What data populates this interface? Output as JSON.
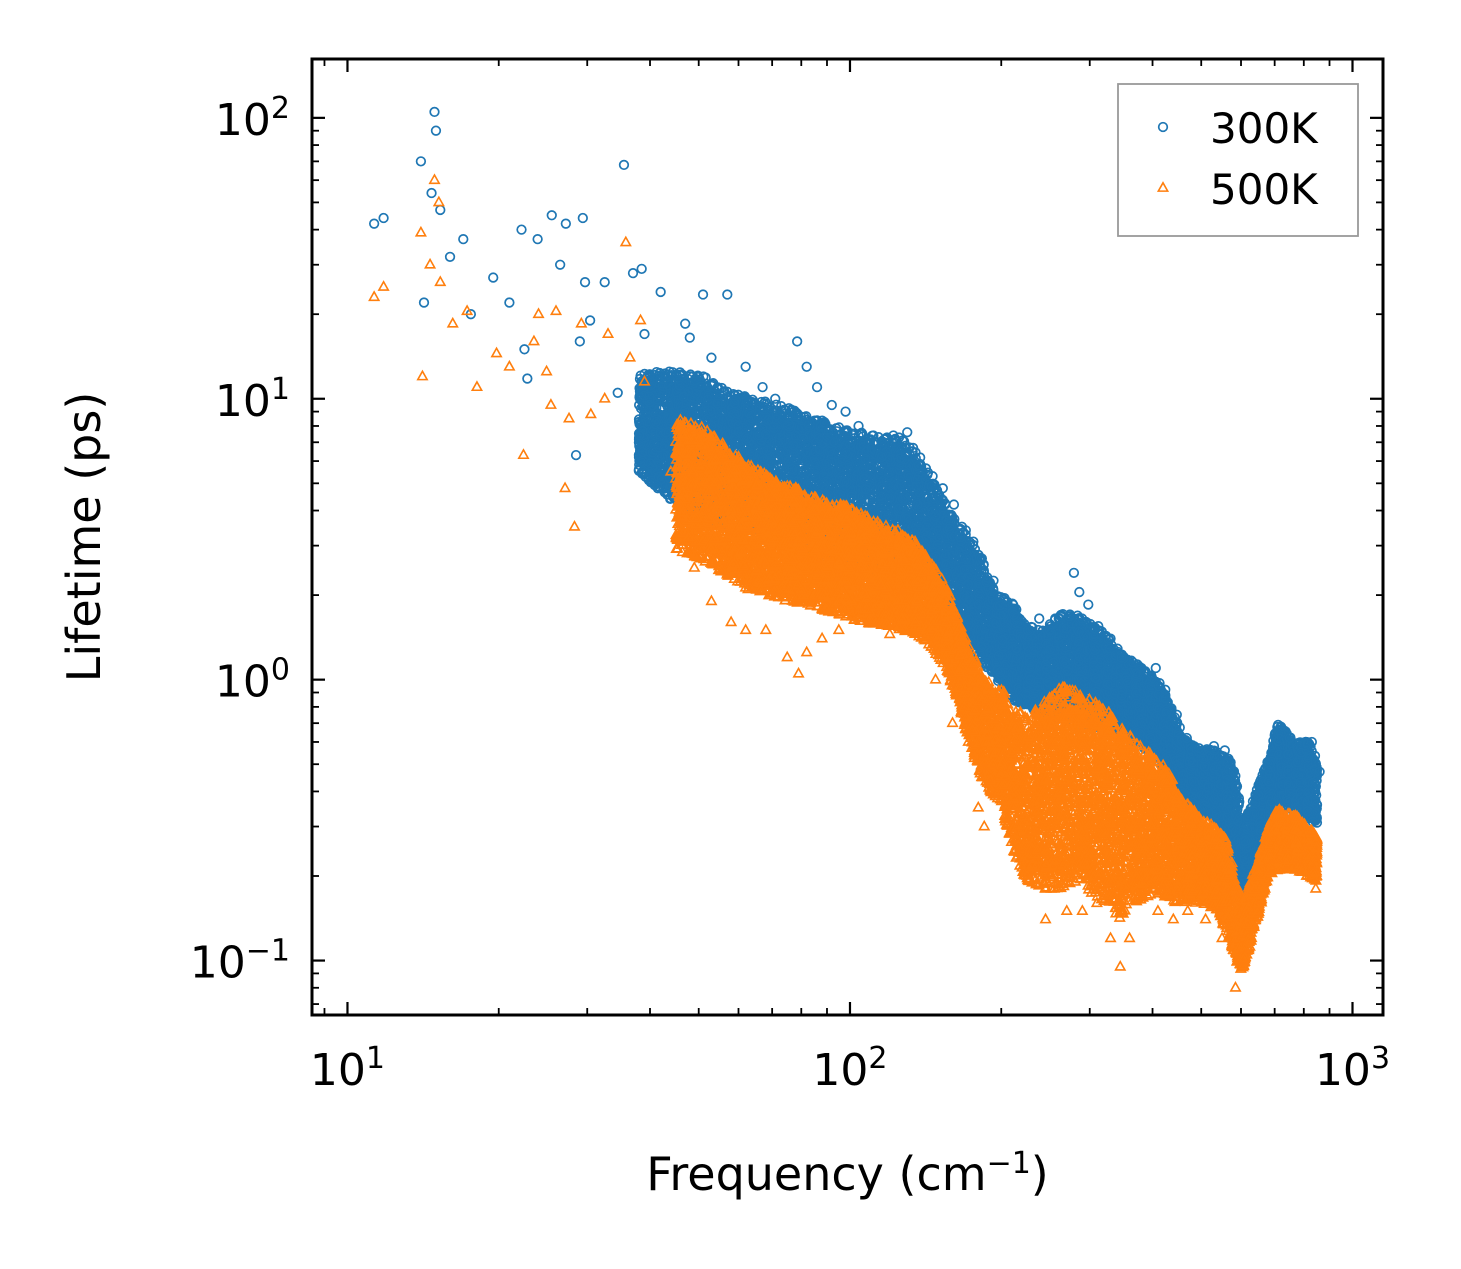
{
  "chart_data": {
    "type": "scatter",
    "title": "",
    "xlabel": "Frequency (cm",
    "xlabel_exponent": "−1",
    "xlabel_close": ")",
    "ylabel": "Lifetime (ps)",
    "xscale": "log",
    "yscale": "log",
    "xlim": [
      8.5,
      1150
    ],
    "ylim": [
      0.064,
      162
    ],
    "x_ticks": [
      {
        "value": 10,
        "base": "10",
        "exp": "1"
      },
      {
        "value": 100,
        "base": "10",
        "exp": "2"
      },
      {
        "value": 1000,
        "base": "10",
        "exp": "3"
      }
    ],
    "y_ticks": [
      {
        "value": 0.1,
        "base": "10",
        "exp": "−1"
      },
      {
        "value": 1,
        "base": "10",
        "exp": "0"
      },
      {
        "value": 10,
        "base": "10",
        "exp": "1"
      },
      {
        "value": 100,
        "base": "10",
        "exp": "2"
      }
    ],
    "legend_position": "top-right",
    "series": [
      {
        "name": "300K",
        "marker": "circle",
        "color": "#1f77b4",
        "points": [
          [
            11.3,
            42
          ],
          [
            11.8,
            44
          ],
          [
            14,
            70
          ],
          [
            14.2,
            22
          ],
          [
            14.7,
            54
          ],
          [
            14.9,
            105
          ],
          [
            15,
            90
          ],
          [
            15.3,
            47
          ],
          [
            16,
            32
          ],
          [
            17,
            37
          ],
          [
            17.6,
            20
          ],
          [
            19.5,
            27
          ],
          [
            21,
            22
          ],
          [
            22.2,
            40
          ],
          [
            22.5,
            15
          ],
          [
            22.8,
            11.8
          ],
          [
            23.9,
            37
          ],
          [
            25.5,
            45
          ],
          [
            26.5,
            30
          ],
          [
            27.2,
            42
          ],
          [
            28.5,
            6.3
          ],
          [
            29,
            16
          ],
          [
            29.4,
            44
          ],
          [
            29.7,
            26
          ],
          [
            30.4,
            19
          ],
          [
            32.5,
            26
          ],
          [
            34.5,
            10.5
          ],
          [
            35.5,
            68
          ],
          [
            37,
            28
          ],
          [
            38.5,
            29
          ],
          [
            39,
            17
          ],
          [
            42,
            24
          ],
          [
            44,
            12
          ],
          [
            47,
            18.5
          ],
          [
            48,
            16.5
          ],
          [
            51,
            23.5
          ],
          [
            53,
            14
          ],
          [
            57,
            23.5
          ],
          [
            62,
            13
          ],
          [
            67,
            11
          ],
          [
            71,
            10
          ],
          [
            78.5,
            16
          ],
          [
            82,
            13
          ],
          [
            86,
            11
          ],
          [
            92,
            9.5
          ],
          [
            98,
            9
          ],
          [
            104,
            8
          ],
          [
            114,
            7.3
          ],
          [
            122,
            7.4
          ],
          [
            130,
            7.6
          ],
          [
            137,
            5.8
          ],
          [
            146,
            5.3
          ],
          [
            153,
            4.8
          ],
          [
            161,
            4.2
          ],
          [
            167,
            3.5
          ],
          [
            170,
            3.4
          ],
          [
            176,
            3.1
          ],
          [
            183,
            2.7
          ],
          [
            193,
            2.25
          ],
          [
            203,
            1.95
          ],
          [
            212,
            1.7
          ],
          [
            226,
            1.5
          ],
          [
            238,
            1.65
          ],
          [
            250,
            1.5
          ],
          [
            263,
            1.7
          ],
          [
            279,
            2.4
          ],
          [
            286,
            2.05
          ],
          [
            298,
            1.85
          ],
          [
            312,
            1.55
          ],
          [
            330,
            1.4
          ],
          [
            347,
            1.2
          ],
          [
            366,
            1.15
          ],
          [
            389,
            1.0
          ],
          [
            406,
            1.1
          ],
          [
            424,
            0.92
          ],
          [
            447,
            0.75
          ],
          [
            468,
            0.62
          ],
          [
            495,
            0.57
          ],
          [
            530,
            0.58
          ],
          [
            557,
            0.56
          ],
          [
            580,
            0.47
          ],
          [
            599,
            0.25
          ],
          [
            620,
            0.18
          ],
          [
            685,
            0.5
          ],
          [
            720,
            0.68
          ],
          [
            750,
            0.62
          ],
          [
            790,
            0.55
          ],
          [
            830,
            0.6
          ],
          [
            860,
            0.47
          ]
        ],
        "band": [
          [
            38,
            12.5,
            5.5
          ],
          [
            45,
            12.5,
            4.2
          ],
          [
            52,
            12,
            3.6
          ],
          [
            58,
            10.5,
            3.5
          ],
          [
            65,
            10,
            3.4
          ],
          [
            75,
            9.3,
            3.0
          ],
          [
            85,
            8.6,
            2.8
          ],
          [
            95,
            8.0,
            2.6
          ],
          [
            105,
            7.7,
            2.5
          ],
          [
            115,
            7.3,
            2.4
          ],
          [
            125,
            7.3,
            2.3
          ],
          [
            135,
            6.6,
            2.2
          ],
          [
            145,
            5.4,
            1.9
          ],
          [
            155,
            4.2,
            1.6
          ],
          [
            165,
            3.5,
            1.4
          ],
          [
            180,
            2.9,
            1.2
          ],
          [
            195,
            2.0,
            1.0
          ],
          [
            210,
            1.9,
            0.85
          ],
          [
            225,
            1.55,
            0.8
          ],
          [
            245,
            1.55,
            0.75
          ],
          [
            265,
            1.75,
            0.72
          ],
          [
            285,
            1.7,
            0.7
          ],
          [
            305,
            1.55,
            0.68
          ],
          [
            325,
            1.45,
            0.65
          ],
          [
            345,
            1.25,
            0.62
          ],
          [
            370,
            1.15,
            0.6
          ],
          [
            395,
            1.05,
            0.55
          ],
          [
            420,
            0.95,
            0.48
          ],
          [
            445,
            0.72,
            0.4
          ],
          [
            470,
            0.6,
            0.36
          ],
          [
            500,
            0.57,
            0.34
          ],
          [
            530,
            0.56,
            0.32
          ],
          [
            560,
            0.55,
            0.28
          ],
          [
            585,
            0.48,
            0.2
          ],
          [
            605,
            0.3,
            0.16
          ],
          [
            680,
            0.52,
            0.32
          ],
          [
            710,
            0.7,
            0.36
          ],
          [
            740,
            0.66,
            0.35
          ],
          [
            770,
            0.6,
            0.34
          ],
          [
            810,
            0.62,
            0.32
          ],
          [
            850,
            0.52,
            0.3
          ]
        ]
      },
      {
        "name": "500K",
        "marker": "triangle",
        "color": "#ff7f0e",
        "points": [
          [
            11.3,
            23
          ],
          [
            11.8,
            25
          ],
          [
            14,
            39
          ],
          [
            14.1,
            12
          ],
          [
            14.6,
            30
          ],
          [
            14.9,
            60
          ],
          [
            15.2,
            50
          ],
          [
            15.3,
            26
          ],
          [
            16.2,
            18.5
          ],
          [
            17.3,
            20.5
          ],
          [
            18.1,
            11
          ],
          [
            19.8,
            14.5
          ],
          [
            21,
            13
          ],
          [
            22.4,
            6.3
          ],
          [
            23.5,
            16
          ],
          [
            24,
            20
          ],
          [
            24.9,
            12.5
          ],
          [
            25.4,
            9.5
          ],
          [
            26,
            20.5
          ],
          [
            27.1,
            4.8
          ],
          [
            27.6,
            8.5
          ],
          [
            28.3,
            3.5
          ],
          [
            29.2,
            18.5
          ],
          [
            30.5,
            8.8
          ],
          [
            32.5,
            10
          ],
          [
            33,
            17
          ],
          [
            35.8,
            36
          ],
          [
            36.5,
            14
          ],
          [
            38.3,
            19
          ],
          [
            39,
            11.5
          ],
          [
            44,
            5.5
          ],
          [
            49,
            2.5
          ],
          [
            53,
            1.9
          ],
          [
            58,
            1.6
          ],
          [
            62,
            1.5
          ],
          [
            68,
            1.5
          ],
          [
            75,
            1.2
          ],
          [
            79,
            1.05
          ],
          [
            82,
            1.25
          ],
          [
            88,
            1.4
          ],
          [
            95,
            1.5
          ],
          [
            120,
            1.45
          ],
          [
            135,
            1.6
          ],
          [
            148,
            1.0
          ],
          [
            160,
            0.7
          ],
          [
            172,
            0.6
          ],
          [
            180,
            0.35
          ],
          [
            185,
            0.3
          ],
          [
            203,
            0.42
          ],
          [
            225,
            0.2
          ],
          [
            245,
            0.14
          ],
          [
            255,
            0.18
          ],
          [
            270,
            0.15
          ],
          [
            290,
            0.15
          ],
          [
            310,
            0.16
          ],
          [
            330,
            0.12
          ],
          [
            345,
            0.095
          ],
          [
            360,
            0.12
          ],
          [
            410,
            0.15
          ],
          [
            440,
            0.14
          ],
          [
            470,
            0.15
          ],
          [
            510,
            0.14
          ],
          [
            550,
            0.12
          ],
          [
            585,
            0.08
          ],
          [
            610,
            0.11
          ],
          [
            690,
            0.23
          ],
          [
            730,
            0.25
          ],
          [
            770,
            0.23
          ],
          [
            810,
            0.2
          ],
          [
            845,
            0.18
          ]
        ],
        "band": [
          [
            45,
            8.5,
            2.9
          ],
          [
            52,
            7.8,
            2.6
          ],
          [
            58,
            6.5,
            2.3
          ],
          [
            65,
            5.6,
            2.0
          ],
          [
            75,
            5.0,
            1.9
          ],
          [
            85,
            4.5,
            1.8
          ],
          [
            95,
            4.3,
            1.7
          ],
          [
            105,
            3.9,
            1.6
          ],
          [
            115,
            3.6,
            1.55
          ],
          [
            125,
            3.4,
            1.5
          ],
          [
            135,
            3.1,
            1.45
          ],
          [
            145,
            2.6,
            1.3
          ],
          [
            155,
            2.2,
            1.1
          ],
          [
            165,
            1.6,
            0.8
          ],
          [
            175,
            1.25,
            0.55
          ],
          [
            185,
            1.0,
            0.42
          ],
          [
            200,
            0.95,
            0.36
          ],
          [
            210,
            0.8,
            0.25
          ],
          [
            225,
            0.75,
            0.19
          ],
          [
            245,
            0.85,
            0.18
          ],
          [
            265,
            0.95,
            0.18
          ],
          [
            285,
            0.9,
            0.19
          ],
          [
            305,
            0.85,
            0.17
          ],
          [
            325,
            0.78,
            0.16
          ],
          [
            345,
            0.7,
            0.14
          ],
          [
            370,
            0.6,
            0.16
          ],
          [
            395,
            0.55,
            0.17
          ],
          [
            420,
            0.5,
            0.17
          ],
          [
            445,
            0.42,
            0.16
          ],
          [
            470,
            0.36,
            0.16
          ],
          [
            500,
            0.33,
            0.16
          ],
          [
            530,
            0.3,
            0.15
          ],
          [
            560,
            0.27,
            0.13
          ],
          [
            585,
            0.2,
            0.1
          ],
          [
            605,
            0.16,
            0.09
          ],
          [
            680,
            0.3,
            0.2
          ],
          [
            710,
            0.35,
            0.21
          ],
          [
            740,
            0.34,
            0.21
          ],
          [
            770,
            0.33,
            0.21
          ],
          [
            810,
            0.3,
            0.2
          ],
          [
            850,
            0.28,
            0.19
          ]
        ]
      }
    ]
  }
}
